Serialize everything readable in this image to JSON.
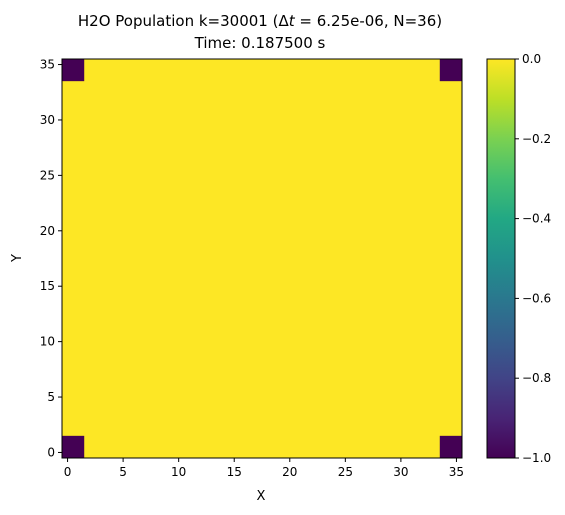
{
  "chart_data": {
    "type": "heatmap",
    "title_line1_prefix": "H2O Population k=30001 (",
    "title_line1_delta": "Δ",
    "title_line1_t": "t",
    "title_line1_eq": " = 6.25e-06, N=36)",
    "title_line2": "Time: 0.187500 s",
    "xlabel": "X",
    "ylabel": "Y",
    "grid_size": 36,
    "xlim": [
      -0.5,
      35.5
    ],
    "ylim": [
      -0.5,
      35.5
    ],
    "x_ticks": [
      0,
      5,
      10,
      15,
      20,
      25,
      30,
      35
    ],
    "y_ticks": [
      0,
      5,
      10,
      15,
      20,
      25,
      30,
      35
    ],
    "x_tick_labels": [
      "0",
      "5",
      "10",
      "15",
      "20",
      "25",
      "30",
      "35"
    ],
    "y_tick_labels": [
      "0",
      "5",
      "10",
      "15",
      "20",
      "25",
      "30",
      "35"
    ],
    "background_value": 0.0,
    "cells": [
      {
        "x": [
          0,
          1
        ],
        "y": [
          0,
          1
        ],
        "value": -1.0
      },
      {
        "x": [
          34,
          35
        ],
        "y": [
          0,
          1
        ],
        "value": -1.0
      },
      {
        "x": [
          0,
          1
        ],
        "y": [
          34,
          35
        ],
        "value": -1.0
      },
      {
        "x": [
          34,
          35
        ],
        "y": [
          34,
          35
        ],
        "value": -1.0
      }
    ],
    "colormap": "viridis",
    "color_low": "#440154",
    "color_high": "#fde725",
    "colorbar": {
      "vmin": -1.0,
      "vmax": 0.0,
      "ticks": [
        0.0,
        -0.2,
        -0.4,
        -0.6,
        -0.8,
        -1.0
      ],
      "tick_labels": [
        "0.0",
        "−0.2",
        "−0.4",
        "−0.6",
        "−0.8",
        "−1.0"
      ]
    }
  }
}
